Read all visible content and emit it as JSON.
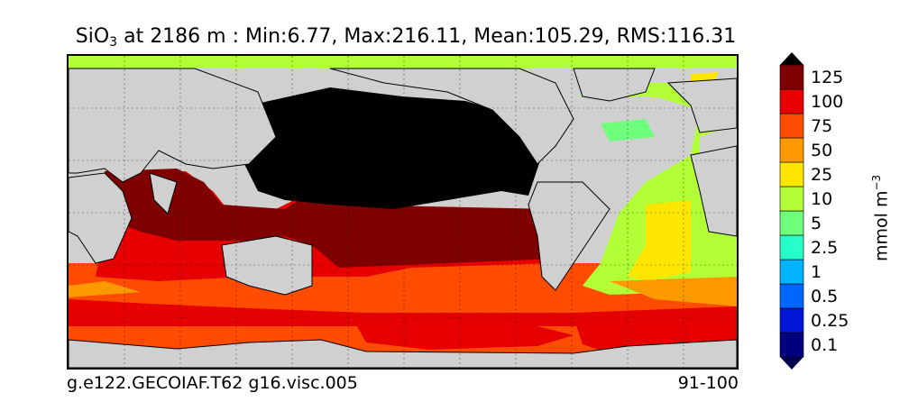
{
  "title": {
    "species_main": "SiO",
    "species_sub": "3",
    "rest": " at 2186 m : Min:6.77, Max:216.11, Mean:105.29, RMS:116.31"
  },
  "footer": {
    "case": "g.e122.GECOIAF.T62 g16.visc.005",
    "years": "91-100"
  },
  "colorbar": {
    "unit_main": "mmol m",
    "unit_sup": "−3",
    "bins": [
      {
        "label": "0.1",
        "color": "#00007f"
      },
      {
        "label": "0.25",
        "color": "#0016d6"
      },
      {
        "label": "0.5",
        "color": "#0066ff"
      },
      {
        "label": "1",
        "color": "#00b4ff"
      },
      {
        "label": "2.5",
        "color": "#26ffc9"
      },
      {
        "label": "5",
        "color": "#6eff7c"
      },
      {
        "label": "10",
        "color": "#b2ff37"
      },
      {
        "label": "25",
        "color": "#ffe600"
      },
      {
        "label": "50",
        "color": "#ff9900"
      },
      {
        "label": "75",
        "color": "#ff4c00"
      },
      {
        "label": "100",
        "color": "#e60000"
      },
      {
        "label": "125",
        "color": "#7f0000"
      }
    ],
    "under_color": "#00004c",
    "over_color": "#000000"
  },
  "map": {
    "land_color": "#d0d0d0",
    "missing_color": "#ffffff",
    "pacific_high_color": "#000000",
    "gridlines": "dashed"
  }
}
